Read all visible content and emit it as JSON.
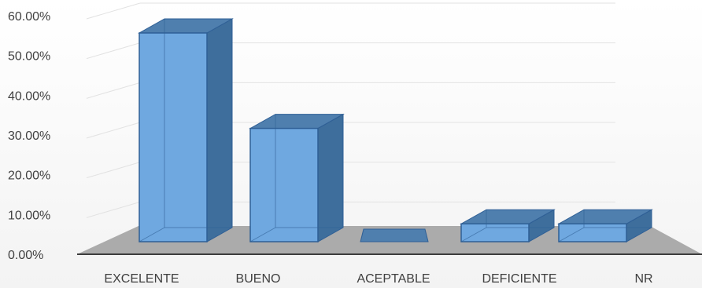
{
  "chart_data": {
    "type": "bar",
    "title": "",
    "xlabel": "",
    "ylabel": "",
    "categories": [
      "EXCELENTE",
      "BUENO",
      "ACEPTABLE",
      "DEFICIENTE",
      "NR"
    ],
    "values": [
      52.5,
      28.5,
      0,
      4.5,
      4.5
    ],
    "ylim": [
      0,
      60
    ],
    "yticks": [
      "0.00%",
      "10.00%",
      "20.00%",
      "30.00%",
      "40.00%",
      "50.00%",
      "60.00%"
    ],
    "grid": true,
    "legend": "none",
    "colors": {
      "front": "#6fa8e0",
      "side": "#3e6e9c",
      "top": "#4f7fae",
      "edge": "#2f5f95",
      "floor": "#ababab"
    }
  }
}
